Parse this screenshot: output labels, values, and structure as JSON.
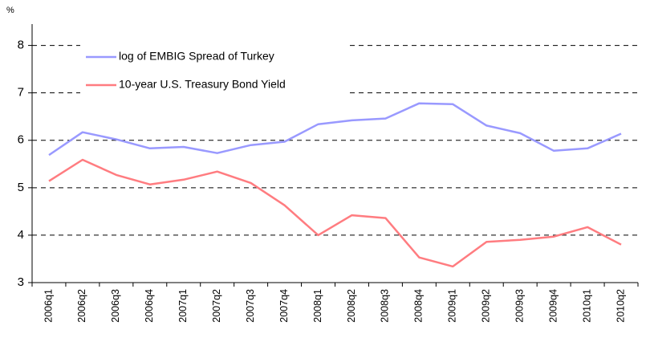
{
  "chart_data": {
    "type": "line",
    "y_label": "%",
    "categories": [
      "2006q1",
      "2006q2",
      "2006q3",
      "2006q4",
      "2007q1",
      "2007q2",
      "2007q3",
      "2007q4",
      "2008q1",
      "2008q2",
      "2008q3",
      "2008q4",
      "2009q1",
      "2009q2",
      "2009q3",
      "2009q4",
      "2010q1",
      "2010q2"
    ],
    "series": [
      {
        "name": "log of EMBIG Spread of Turkey",
        "color": "#9999ff",
        "values": [
          5.69,
          6.17,
          6.02,
          5.83,
          5.86,
          5.73,
          5.9,
          5.97,
          6.34,
          6.42,
          6.46,
          6.78,
          6.76,
          6.31,
          6.15,
          5.78,
          5.83,
          6.14
        ]
      },
      {
        "name": "10-year U.S. Treasury Bond Yield",
        "color": "#ff7c80",
        "values": [
          5.14,
          5.59,
          5.27,
          5.07,
          5.17,
          5.34,
          5.1,
          4.63,
          4.0,
          4.42,
          4.36,
          3.53,
          3.34,
          3.86,
          3.9,
          3.97,
          4.17,
          3.8
        ]
      }
    ],
    "ylim": [
      3,
      8.45
    ],
    "yticks": [
      3,
      4,
      5,
      6,
      7,
      8
    ],
    "grid": true,
    "legend": "upper-left"
  }
}
